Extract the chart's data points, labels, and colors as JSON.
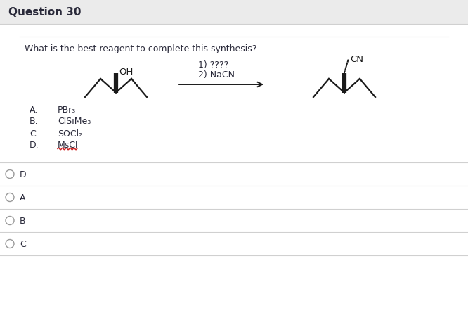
{
  "title": "Question 30",
  "question": "What is the best reagent to complete this synthesis?",
  "bg_color": "#f0f0f0",
  "title_bg": "#ebebeb",
  "content_bg": "#ffffff",
  "choices": [
    {
      "label": "A.",
      "text": "PBr₃"
    },
    {
      "label": "B.",
      "text": "ClSiMe₃"
    },
    {
      "label": "C.",
      "text": "SOCl₂"
    },
    {
      "label": "D.",
      "text": "MsCl"
    }
  ],
  "answers": [
    "D",
    "A",
    "B",
    "C"
  ],
  "line_color": "#d0d0d0",
  "text_color": "#2a2a3a",
  "wavy_color": "#cc2222",
  "mol_color": "#1a1a1a",
  "title_fontsize": 11,
  "body_fontsize": 9,
  "choice_fontsize": 9,
  "answer_fontsize": 9
}
